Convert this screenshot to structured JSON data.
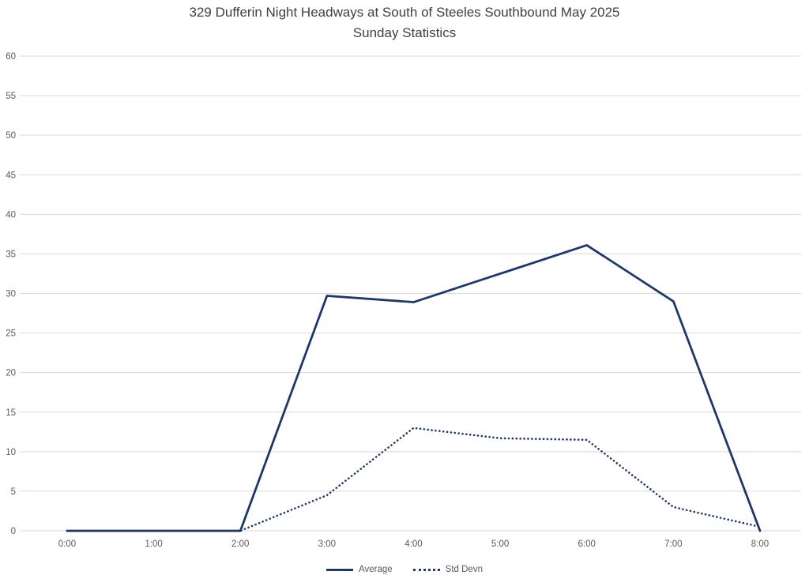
{
  "title": {
    "line1": "329 Dufferin Night Headways at South of Steeles Southbound May 2025",
    "line2": "Sunday Statistics"
  },
  "colors": {
    "line": "#1f3864",
    "grid": "#d9d9d9",
    "axis_text": "#595959",
    "title_text": "#404040"
  },
  "chart_data": {
    "type": "line",
    "categories": [
      "0:00",
      "1:00",
      "2:00",
      "3:00",
      "4:00",
      "5:00",
      "6:00",
      "7:00",
      "8:00"
    ],
    "series": [
      {
        "name": "Average",
        "style": "solid",
        "values": [
          0,
          0,
          0,
          29.7,
          28.9,
          32.5,
          36.1,
          29.0,
          0
        ]
      },
      {
        "name": "Std Devn",
        "style": "dotted",
        "values": [
          0,
          0,
          0,
          4.5,
          13.0,
          11.7,
          11.5,
          3.0,
          0.5
        ]
      }
    ],
    "title": "329 Dufferin Night Headways at South of Steeles Southbound May 2025 Sunday Statistics",
    "xlabel": "",
    "ylabel": "",
    "ylim": [
      0,
      60
    ],
    "ytick_step": 5,
    "grid": "horizontal",
    "legend_position": "bottom"
  }
}
